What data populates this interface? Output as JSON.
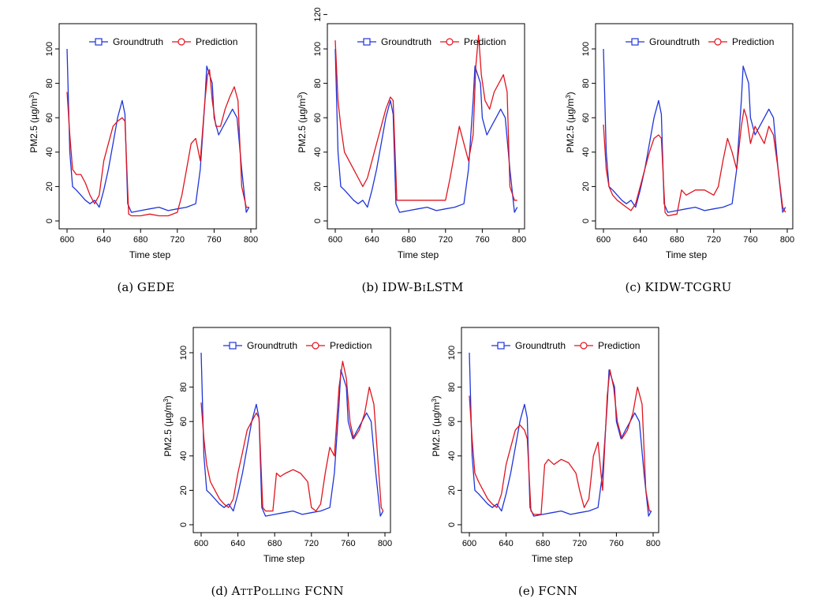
{
  "figure": {
    "axis_xlabel": "Time step",
    "axis_ylabel_prefix": "PM2.5 (",
    "axis_ylabel_unit": "µg/m",
    "axis_ylabel_sup": "3",
    "axis_ylabel_suffix": ")",
    "legend_groundtruth": "Groundtruth",
    "legend_prediction": "Prediction",
    "groundtruth_color": "#1f35d8",
    "prediction_color": "#e0141e"
  },
  "chart_data": [
    {
      "type": "line",
      "caption_tag": "(a)",
      "caption_name": "GEDE",
      "xlabel": "Time step",
      "ylabel": "PM2.5 (µg/m3)",
      "xlim": [
        600,
        800
      ],
      "ylim": [
        0,
        105
      ],
      "xticks": [
        600,
        640,
        680,
        720,
        760,
        800
      ],
      "yticks": [
        0,
        20,
        40,
        60,
        80,
        100
      ],
      "legend": "top-center",
      "series": [
        {
          "name": "Groundtruth",
          "x": [
            600,
            603,
            606,
            610,
            615,
            620,
            625,
            630,
            635,
            640,
            645,
            650,
            655,
            660,
            663,
            666,
            670,
            680,
            690,
            700,
            710,
            720,
            730,
            740,
            745,
            750,
            752,
            755,
            758,
            760,
            765,
            770,
            775,
            780,
            785,
            790,
            795,
            798
          ],
          "values": [
            100,
            40,
            20,
            18,
            15,
            12,
            10,
            12,
            8,
            18,
            30,
            45,
            60,
            70,
            62,
            10,
            5,
            6,
            7,
            8,
            6,
            7,
            8,
            10,
            30,
            70,
            90,
            85,
            80,
            60,
            50,
            55,
            60,
            65,
            60,
            30,
            5,
            8
          ]
        },
        {
          "name": "Prediction",
          "x": [
            600,
            603,
            606,
            610,
            615,
            620,
            625,
            630,
            635,
            640,
            645,
            650,
            655,
            660,
            663,
            667,
            670,
            680,
            690,
            700,
            710,
            720,
            725,
            730,
            735,
            740,
            745,
            750,
            753,
            755,
            758,
            762,
            767,
            772,
            777,
            782,
            786,
            790,
            795,
            798
          ],
          "values": [
            75,
            50,
            30,
            27,
            27,
            22,
            15,
            10,
            15,
            35,
            45,
            55,
            58,
            60,
            58,
            4,
            3,
            3,
            4,
            3,
            3,
            5,
            15,
            30,
            45,
            48,
            35,
            70,
            85,
            88,
            70,
            55,
            55,
            65,
            72,
            78,
            70,
            20,
            8,
            8
          ]
        }
      ]
    },
    {
      "type": "line",
      "caption_tag": "(b)",
      "caption_name": "IDW-BiLSTM",
      "xlabel": "Time step",
      "ylabel": "PM2.5 (µg/m3)",
      "xlim": [
        600,
        800
      ],
      "ylim": [
        0,
        125
      ],
      "xticks": [
        600,
        640,
        680,
        720,
        760,
        800
      ],
      "yticks": [
        0,
        20,
        40,
        60,
        80,
        100,
        120
      ],
      "legend": "top-center",
      "series": [
        {
          "name": "Groundtruth",
          "x": [
            600,
            603,
            606,
            610,
            615,
            620,
            625,
            630,
            635,
            640,
            645,
            650,
            655,
            660,
            663,
            666,
            670,
            680,
            690,
            700,
            710,
            720,
            730,
            740,
            745,
            750,
            752,
            755,
            758,
            760,
            765,
            770,
            775,
            780,
            785,
            790,
            795,
            798
          ],
          "values": [
            100,
            40,
            20,
            18,
            15,
            12,
            10,
            12,
            8,
            18,
            30,
            45,
            60,
            70,
            62,
            10,
            5,
            6,
            7,
            8,
            6,
            7,
            8,
            10,
            30,
            70,
            90,
            85,
            80,
            60,
            50,
            55,
            60,
            65,
            60,
            30,
            5,
            8
          ]
        },
        {
          "name": "Prediction",
          "x": [
            600,
            603,
            606,
            610,
            615,
            620,
            625,
            630,
            635,
            640,
            645,
            650,
            655,
            660,
            663,
            667,
            670,
            680,
            690,
            700,
            710,
            720,
            725,
            730,
            735,
            740,
            745,
            750,
            753,
            756,
            759,
            763,
            768,
            773,
            778,
            783,
            787,
            790,
            795,
            798
          ],
          "values": [
            105,
            70,
            55,
            40,
            35,
            30,
            25,
            20,
            25,
            35,
            45,
            55,
            65,
            72,
            70,
            12,
            12,
            12,
            12,
            12,
            12,
            12,
            25,
            40,
            55,
            45,
            35,
            50,
            90,
            108,
            85,
            70,
            65,
            75,
            80,
            85,
            75,
            20,
            12,
            12
          ]
        }
      ]
    },
    {
      "type": "line",
      "caption_tag": "(c)",
      "caption_name": "KIDW-TCGRU",
      "xlabel": "Time step",
      "ylabel": "PM2.5 (µg/m3)",
      "xlim": [
        600,
        800
      ],
      "ylim": [
        0,
        105
      ],
      "xticks": [
        600,
        640,
        680,
        720,
        760,
        800
      ],
      "yticks": [
        0,
        20,
        40,
        60,
        80,
        100
      ],
      "legend": "top-center",
      "series": [
        {
          "name": "Groundtruth",
          "x": [
            600,
            603,
            606,
            610,
            615,
            620,
            625,
            630,
            635,
            640,
            645,
            650,
            655,
            660,
            663,
            666,
            670,
            680,
            690,
            700,
            710,
            720,
            730,
            740,
            745,
            750,
            752,
            755,
            758,
            760,
            765,
            770,
            775,
            780,
            785,
            790,
            795,
            798
          ],
          "values": [
            100,
            40,
            20,
            18,
            15,
            12,
            10,
            12,
            8,
            18,
            30,
            45,
            60,
            70,
            62,
            10,
            5,
            6,
            7,
            8,
            6,
            7,
            8,
            10,
            30,
            70,
            90,
            85,
            80,
            60,
            50,
            55,
            60,
            65,
            60,
            30,
            5,
            8
          ]
        },
        {
          "name": "Prediction",
          "x": [
            600,
            603,
            606,
            610,
            615,
            620,
            625,
            630,
            635,
            640,
            645,
            650,
            655,
            660,
            663,
            667,
            670,
            680,
            685,
            690,
            700,
            710,
            720,
            725,
            730,
            735,
            740,
            745,
            750,
            753,
            756,
            760,
            765,
            770,
            775,
            780,
            785,
            790,
            795,
            798
          ],
          "values": [
            56,
            30,
            20,
            15,
            12,
            10,
            8,
            6,
            10,
            20,
            30,
            40,
            48,
            50,
            48,
            5,
            3,
            4,
            18,
            15,
            18,
            18,
            15,
            20,
            35,
            48,
            40,
            30,
            55,
            65,
            60,
            45,
            55,
            50,
            45,
            55,
            50,
            30,
            8,
            5
          ]
        }
      ]
    },
    {
      "type": "line",
      "caption_tag": "(d)",
      "caption_name": "AttPolling FCNN",
      "xlabel": "Time step",
      "ylabel": "PM2.5 (µg/m3)",
      "xlim": [
        600,
        800
      ],
      "ylim": [
        0,
        105
      ],
      "xticks": [
        600,
        640,
        680,
        720,
        760,
        800
      ],
      "yticks": [
        0,
        20,
        40,
        60,
        80,
        100
      ],
      "legend": "top-center",
      "series": [
        {
          "name": "Groundtruth",
          "x": [
            600,
            603,
            606,
            610,
            615,
            620,
            625,
            630,
            635,
            640,
            645,
            650,
            655,
            660,
            663,
            666,
            670,
            680,
            690,
            700,
            710,
            720,
            730,
            740,
            745,
            750,
            752,
            755,
            758,
            760,
            765,
            770,
            775,
            780,
            785,
            790,
            795,
            798
          ],
          "values": [
            100,
            40,
            20,
            18,
            15,
            12,
            10,
            12,
            8,
            18,
            30,
            45,
            60,
            70,
            62,
            10,
            5,
            6,
            7,
            8,
            6,
            7,
            8,
            10,
            30,
            70,
            90,
            85,
            80,
            60,
            50,
            55,
            60,
            65,
            60,
            30,
            5,
            8
          ]
        },
        {
          "name": "Prediction",
          "x": [
            600,
            603,
            606,
            610,
            615,
            620,
            625,
            630,
            635,
            640,
            645,
            650,
            655,
            660,
            663,
            667,
            670,
            678,
            682,
            686,
            692,
            700,
            708,
            716,
            720,
            725,
            730,
            735,
            740,
            745,
            750,
            754,
            758,
            762,
            766,
            772,
            778,
            783,
            788,
            792,
            796,
            798
          ],
          "values": [
            71,
            50,
            35,
            25,
            20,
            15,
            12,
            10,
            15,
            30,
            42,
            55,
            60,
            65,
            62,
            10,
            8,
            8,
            30,
            28,
            30,
            32,
            30,
            25,
            10,
            8,
            12,
            30,
            45,
            40,
            80,
            95,
            85,
            60,
            50,
            55,
            65,
            80,
            70,
            40,
            10,
            8
          ]
        }
      ]
    },
    {
      "type": "line",
      "caption_tag": "(e)",
      "caption_name": "FCNN",
      "xlabel": "Time step",
      "ylabel": "PM2.5 (µg/m3)",
      "xlim": [
        600,
        800
      ],
      "ylim": [
        0,
        105
      ],
      "xticks": [
        600,
        640,
        680,
        720,
        760,
        800
      ],
      "yticks": [
        0,
        20,
        40,
        60,
        80,
        100
      ],
      "legend": "top-center",
      "series": [
        {
          "name": "Groundtruth",
          "x": [
            600,
            603,
            606,
            610,
            615,
            620,
            625,
            630,
            635,
            640,
            645,
            650,
            655,
            660,
            663,
            666,
            670,
            680,
            690,
            700,
            710,
            720,
            730,
            740,
            745,
            750,
            752,
            755,
            758,
            760,
            765,
            770,
            775,
            780,
            785,
            790,
            795,
            798
          ],
          "values": [
            100,
            40,
            20,
            18,
            15,
            12,
            10,
            12,
            8,
            18,
            30,
            45,
            60,
            70,
            62,
            10,
            5,
            6,
            7,
            8,
            6,
            7,
            8,
            10,
            30,
            70,
            90,
            85,
            80,
            60,
            50,
            55,
            60,
            65,
            60,
            30,
            5,
            8
          ]
        },
        {
          "name": "Prediction",
          "x": [
            600,
            603,
            606,
            610,
            615,
            620,
            625,
            630,
            635,
            640,
            645,
            650,
            655,
            660,
            663,
            667,
            670,
            678,
            682,
            686,
            692,
            700,
            708,
            716,
            720,
            725,
            730,
            735,
            740,
            745,
            750,
            753,
            757,
            761,
            766,
            772,
            778,
            783,
            788,
            792,
            796,
            798
          ],
          "values": [
            75,
            50,
            30,
            25,
            20,
            15,
            12,
            10,
            18,
            35,
            45,
            55,
            58,
            55,
            50,
            8,
            6,
            6,
            35,
            38,
            35,
            38,
            36,
            30,
            20,
            10,
            15,
            40,
            48,
            20,
            75,
            90,
            80,
            60,
            50,
            55,
            65,
            80,
            70,
            20,
            8,
            8
          ]
        }
      ]
    }
  ]
}
